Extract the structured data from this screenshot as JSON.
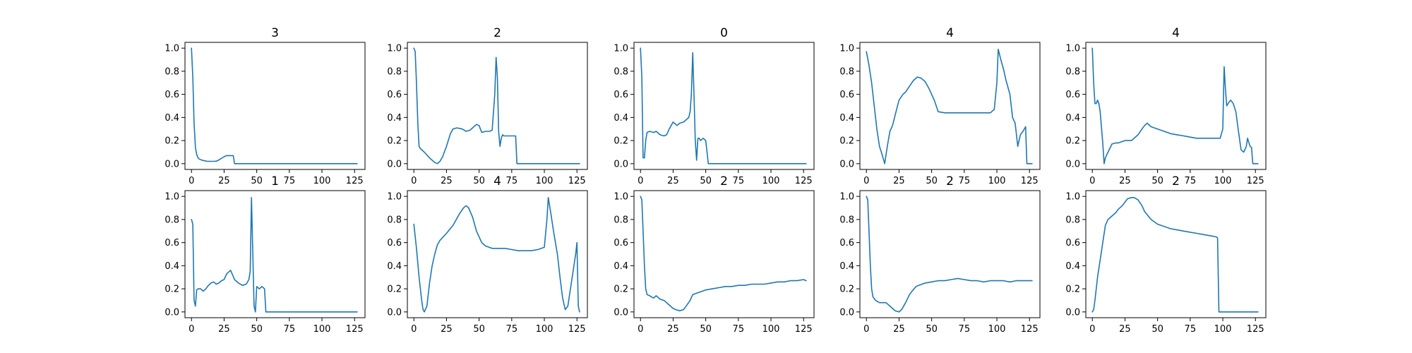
{
  "figure": {
    "line_color": "#1f77b4",
    "background": "#ffffff"
  },
  "chart_data": [
    {
      "type": "line",
      "title": "3",
      "xlim": [
        -5,
        133
      ],
      "ylim": [
        -0.05,
        1.05
      ],
      "xticks": [
        0,
        25,
        50,
        75,
        100,
        125
      ],
      "yticks": [
        "0.0",
        "0.2",
        "0.4",
        "0.6",
        "0.8",
        "1.0"
      ],
      "series": [
        {
          "x": [
            0,
            1,
            2,
            3,
            4,
            5,
            6,
            8,
            10,
            12,
            15,
            18,
            20,
            22,
            25,
            27,
            30,
            32,
            33,
            35,
            40,
            50,
            60,
            75,
            100,
            125,
            127
          ],
          "y": [
            1.0,
            0.75,
            0.35,
            0.14,
            0.08,
            0.05,
            0.04,
            0.03,
            0.025,
            0.02,
            0.02,
            0.02,
            0.025,
            0.04,
            0.06,
            0.07,
            0.07,
            0.07,
            0.0,
            0.0,
            0.0,
            0.0,
            0.0,
            0.0,
            0.0,
            0.0,
            0.0
          ]
        }
      ]
    },
    {
      "type": "line",
      "title": "2",
      "xlim": [
        -5,
        133
      ],
      "ylim": [
        -0.05,
        1.05
      ],
      "xticks": [
        0,
        25,
        50,
        75,
        100,
        125
      ],
      "yticks": [
        "0.0",
        "0.2",
        "0.4",
        "0.6",
        "0.8",
        "1.0"
      ],
      "series": [
        {
          "x": [
            0,
            1,
            2,
            3,
            4,
            5,
            8,
            12,
            16,
            18,
            20,
            22,
            25,
            28,
            30,
            33,
            37,
            40,
            43,
            45,
            48,
            50,
            52,
            55,
            58,
            60,
            62,
            63,
            64,
            65,
            66,
            67,
            68,
            69,
            70,
            72,
            75,
            78,
            79,
            80,
            90,
            100,
            110,
            127
          ],
          "y": [
            1.0,
            0.97,
            0.7,
            0.35,
            0.15,
            0.13,
            0.1,
            0.05,
            0.01,
            0.0,
            0.02,
            0.06,
            0.15,
            0.26,
            0.3,
            0.31,
            0.3,
            0.28,
            0.29,
            0.31,
            0.34,
            0.33,
            0.27,
            0.28,
            0.28,
            0.29,
            0.6,
            0.92,
            0.75,
            0.28,
            0.15,
            0.22,
            0.25,
            0.24,
            0.24,
            0.24,
            0.24,
            0.24,
            0.0,
            0.0,
            0.0,
            0.0,
            0.0,
            0.0
          ]
        }
      ]
    },
    {
      "type": "line",
      "title": "0",
      "xlim": [
        -5,
        133
      ],
      "ylim": [
        -0.05,
        1.05
      ],
      "xticks": [
        0,
        25,
        50,
        75,
        100,
        125
      ],
      "yticks": [
        "0.0",
        "0.2",
        "0.4",
        "0.6",
        "0.8",
        "1.0"
      ],
      "series": [
        {
          "x": [
            0,
            1,
            2,
            3,
            4,
            5,
            7,
            10,
            12,
            15,
            18,
            20,
            22,
            25,
            28,
            30,
            33,
            35,
            37,
            38,
            39,
            40,
            41,
            42,
            43,
            44,
            45,
            46,
            48,
            50,
            52,
            53,
            60,
            75,
            100,
            125,
            127
          ],
          "y": [
            1.0,
            0.75,
            0.05,
            0.05,
            0.2,
            0.27,
            0.28,
            0.27,
            0.28,
            0.25,
            0.24,
            0.25,
            0.3,
            0.36,
            0.33,
            0.35,
            0.36,
            0.38,
            0.4,
            0.45,
            0.6,
            0.96,
            0.6,
            0.2,
            0.03,
            0.22,
            0.22,
            0.2,
            0.22,
            0.2,
            0.0,
            0.0,
            0.0,
            0.0,
            0.0,
            0.0,
            0.0
          ]
        }
      ]
    },
    {
      "type": "line",
      "title": "4",
      "xlim": [
        -5,
        133
      ],
      "ylim": [
        -0.05,
        1.05
      ],
      "xticks": [
        0,
        25,
        50,
        75,
        100,
        125
      ],
      "yticks": [
        "0.0",
        "0.2",
        "0.4",
        "0.6",
        "0.8",
        "1.0"
      ],
      "series": [
        {
          "x": [
            0,
            2,
            4,
            6,
            8,
            10,
            12,
            14,
            16,
            18,
            20,
            22,
            25,
            28,
            30,
            33,
            36,
            39,
            42,
            45,
            48,
            52,
            55,
            60,
            65,
            70,
            75,
            80,
            85,
            90,
            95,
            98,
            100,
            101,
            103,
            105,
            107,
            110,
            112,
            114,
            116,
            118,
            120,
            122,
            123,
            124,
            125,
            127
          ],
          "y": [
            0.97,
            0.85,
            0.7,
            0.5,
            0.3,
            0.15,
            0.08,
            0.0,
            0.15,
            0.28,
            0.33,
            0.42,
            0.55,
            0.6,
            0.62,
            0.67,
            0.72,
            0.75,
            0.74,
            0.71,
            0.65,
            0.55,
            0.45,
            0.44,
            0.44,
            0.44,
            0.44,
            0.44,
            0.44,
            0.44,
            0.44,
            0.47,
            0.7,
            0.99,
            0.9,
            0.82,
            0.72,
            0.6,
            0.4,
            0.35,
            0.15,
            0.25,
            0.28,
            0.32,
            0.0,
            0.0,
            0.0,
            0.0
          ]
        }
      ]
    },
    {
      "type": "line",
      "title": "4",
      "xlim": [
        -5,
        133
      ],
      "ylim": [
        -0.05,
        1.05
      ],
      "xticks": [
        0,
        25,
        50,
        75,
        100,
        125
      ],
      "yticks": [
        "0.0",
        "0.2",
        "0.4",
        "0.6",
        "0.8",
        "1.0"
      ],
      "series": [
        {
          "x": [
            0,
            1,
            2,
            3,
            4,
            5,
            6,
            8,
            9,
            10,
            12,
            15,
            18,
            20,
            25,
            30,
            35,
            38,
            40,
            42,
            45,
            50,
            55,
            60,
            65,
            70,
            75,
            80,
            85,
            90,
            95,
            98,
            100,
            101,
            102,
            103,
            104,
            106,
            108,
            110,
            112,
            114,
            116,
            118,
            119,
            120,
            121,
            122,
            123,
            125,
            127
          ],
          "y": [
            1.0,
            0.7,
            0.52,
            0.52,
            0.55,
            0.52,
            0.45,
            0.18,
            0.0,
            0.05,
            0.1,
            0.17,
            0.18,
            0.18,
            0.2,
            0.2,
            0.25,
            0.3,
            0.33,
            0.35,
            0.32,
            0.3,
            0.28,
            0.26,
            0.25,
            0.24,
            0.23,
            0.22,
            0.22,
            0.22,
            0.22,
            0.22,
            0.3,
            0.84,
            0.65,
            0.5,
            0.52,
            0.55,
            0.52,
            0.45,
            0.28,
            0.12,
            0.1,
            0.15,
            0.22,
            0.18,
            0.15,
            0.14,
            0.0,
            0.0,
            0.0
          ]
        }
      ]
    },
    {
      "type": "line",
      "title": "1",
      "xlim": [
        -5,
        133
      ],
      "ylim": [
        -0.05,
        1.05
      ],
      "xticks": [
        0,
        25,
        50,
        75,
        100,
        125
      ],
      "yticks": [
        "0.0",
        "0.2",
        "0.4",
        "0.6",
        "0.8",
        "1.0"
      ],
      "series": [
        {
          "x": [
            0,
            1,
            2,
            3,
            4,
            5,
            7,
            9,
            11,
            13,
            15,
            17,
            19,
            21,
            23,
            25,
            27,
            30,
            33,
            36,
            39,
            42,
            44,
            45,
            46,
            47,
            48,
            49,
            50,
            52,
            54,
            56,
            57,
            58,
            60,
            75,
            100,
            125,
            127
          ],
          "y": [
            0.8,
            0.76,
            0.1,
            0.05,
            0.19,
            0.2,
            0.2,
            0.18,
            0.2,
            0.23,
            0.25,
            0.26,
            0.24,
            0.25,
            0.27,
            0.28,
            0.33,
            0.36,
            0.28,
            0.25,
            0.23,
            0.24,
            0.28,
            0.35,
            0.99,
            0.5,
            0.05,
            0.0,
            0.22,
            0.2,
            0.22,
            0.2,
            0.0,
            0.0,
            0.0,
            0.0,
            0.0,
            0.0,
            0.0
          ]
        }
      ]
    },
    {
      "type": "line",
      "title": "4",
      "xlim": [
        -5,
        133
      ],
      "ylim": [
        -0.05,
        1.05
      ],
      "xticks": [
        0,
        25,
        50,
        75,
        100,
        125
      ],
      "yticks": [
        "0.0",
        "0.2",
        "0.4",
        "0.6",
        "0.8",
        "1.0"
      ],
      "series": [
        {
          "x": [
            0,
            2,
            4,
            6,
            7,
            8,
            10,
            12,
            14,
            16,
            18,
            20,
            25,
            30,
            35,
            38,
            40,
            42,
            45,
            48,
            52,
            55,
            60,
            65,
            70,
            75,
            80,
            85,
            90,
            95,
            100,
            102,
            103,
            105,
            107,
            110,
            112,
            114,
            116,
            118,
            120,
            122,
            124,
            125,
            126,
            127
          ],
          "y": [
            0.76,
            0.55,
            0.3,
            0.1,
            0.02,
            0.0,
            0.05,
            0.25,
            0.4,
            0.5,
            0.58,
            0.62,
            0.68,
            0.75,
            0.85,
            0.9,
            0.92,
            0.9,
            0.82,
            0.7,
            0.6,
            0.57,
            0.55,
            0.55,
            0.55,
            0.54,
            0.53,
            0.53,
            0.53,
            0.54,
            0.56,
            0.8,
            0.99,
            0.85,
            0.7,
            0.5,
            0.3,
            0.12,
            0.02,
            0.05,
            0.2,
            0.35,
            0.5,
            0.6,
            0.05,
            0.0
          ]
        }
      ]
    },
    {
      "type": "line",
      "title": "2",
      "xlim": [
        -5,
        133
      ],
      "ylim": [
        -0.05,
        1.05
      ],
      "xticks": [
        0,
        25,
        50,
        75,
        100,
        125
      ],
      "yticks": [
        "0.0",
        "0.2",
        "0.4",
        "0.6",
        "0.8",
        "1.0"
      ],
      "series": [
        {
          "x": [
            0,
            1,
            2,
            3,
            4,
            5,
            7,
            10,
            12,
            15,
            18,
            20,
            22,
            25,
            27,
            30,
            33,
            35,
            38,
            40,
            45,
            50,
            55,
            60,
            65,
            70,
            75,
            80,
            85,
            90,
            95,
            100,
            105,
            110,
            115,
            120,
            125,
            127
          ],
          "y": [
            1.0,
            0.97,
            0.7,
            0.4,
            0.2,
            0.15,
            0.14,
            0.12,
            0.14,
            0.11,
            0.1,
            0.08,
            0.06,
            0.03,
            0.02,
            0.01,
            0.02,
            0.05,
            0.1,
            0.15,
            0.17,
            0.19,
            0.2,
            0.21,
            0.22,
            0.22,
            0.23,
            0.23,
            0.24,
            0.24,
            0.24,
            0.25,
            0.26,
            0.26,
            0.27,
            0.27,
            0.28,
            0.27
          ]
        }
      ]
    },
    {
      "type": "line",
      "title": "2",
      "xlim": [
        -5,
        133
      ],
      "ylim": [
        -0.05,
        1.05
      ],
      "xticks": [
        0,
        25,
        50,
        75,
        100,
        125
      ],
      "yticks": [
        "0.0",
        "0.2",
        "0.4",
        "0.6",
        "0.8",
        "1.0"
      ],
      "series": [
        {
          "x": [
            0,
            1,
            2,
            3,
            4,
            5,
            7,
            10,
            12,
            15,
            18,
            20,
            22,
            25,
            27,
            30,
            33,
            35,
            38,
            40,
            45,
            50,
            55,
            60,
            65,
            70,
            75,
            80,
            85,
            90,
            95,
            100,
            105,
            110,
            115,
            120,
            125,
            127
          ],
          "y": [
            1.0,
            0.97,
            0.7,
            0.4,
            0.2,
            0.13,
            0.1,
            0.08,
            0.08,
            0.08,
            0.05,
            0.03,
            0.01,
            0.0,
            0.02,
            0.08,
            0.15,
            0.18,
            0.22,
            0.23,
            0.25,
            0.26,
            0.27,
            0.27,
            0.28,
            0.29,
            0.28,
            0.27,
            0.27,
            0.26,
            0.27,
            0.27,
            0.27,
            0.26,
            0.27,
            0.27,
            0.27,
            0.27
          ]
        }
      ]
    },
    {
      "type": "line",
      "title": "2",
      "xlim": [
        -5,
        133
      ],
      "ylim": [
        -0.05,
        1.05
      ],
      "xticks": [
        0,
        25,
        50,
        75,
        100,
        125
      ],
      "yticks": [
        "0.0",
        "0.2",
        "0.4",
        "0.6",
        "0.8",
        "1.0"
      ],
      "series": [
        {
          "x": [
            0,
            1,
            2,
            4,
            6,
            8,
            10,
            12,
            15,
            18,
            20,
            23,
            25,
            27,
            30,
            32,
            35,
            38,
            40,
            45,
            50,
            55,
            60,
            65,
            70,
            75,
            80,
            85,
            90,
            95,
            96,
            97,
            100,
            110,
            125,
            127
          ],
          "y": [
            0.0,
            0.02,
            0.1,
            0.3,
            0.45,
            0.6,
            0.75,
            0.8,
            0.83,
            0.86,
            0.89,
            0.92,
            0.95,
            0.98,
            0.99,
            0.99,
            0.97,
            0.92,
            0.87,
            0.8,
            0.76,
            0.74,
            0.72,
            0.71,
            0.7,
            0.69,
            0.68,
            0.67,
            0.66,
            0.65,
            0.64,
            0.0,
            0.0,
            0.0,
            0.0,
            0.0
          ]
        }
      ]
    }
  ]
}
